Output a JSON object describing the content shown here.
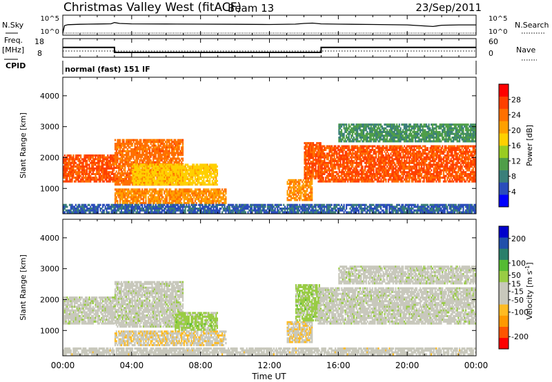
{
  "header": {
    "station": "Christmas Valley West (fitACF)",
    "beam": "Beam 13",
    "date": "23/Sep/2011"
  },
  "left_labels": {
    "nsky": "N.Sky",
    "nsky_ticks": [
      "10^5",
      "10^0"
    ],
    "freq": "Freq.",
    "freq_unit": "[MHz]",
    "freq_ticks": [
      "18",
      "8"
    ],
    "cpid": "CPID"
  },
  "right_labels": {
    "nsearch": "N.Search",
    "nsearch_ticks": [
      "10^5",
      "10^0"
    ],
    "nave": "Nave",
    "nave_ticks": [
      "60",
      "0"
    ]
  },
  "mode_text": "normal (fast) 151 IF",
  "colors": {
    "power_scale": [
      "#0000ff",
      "#2a4dbb",
      "#3a7f7a",
      "#4f9e49",
      "#99cc22",
      "#ffd000",
      "#ffa000",
      "#ff7000",
      "#ff4000",
      "#ff0000"
    ],
    "velocity_scale": [
      "#ff0000",
      "#ff5500",
      "#ff9900",
      "#ffbb22",
      "#c8c8bc",
      "#c8c8bc",
      "#99cc44",
      "#55bb33",
      "#2a7f6a",
      "#2050aa",
      "#0000cc"
    ]
  },
  "chart_data": [
    {
      "type": "line",
      "name": "nsky-panel",
      "x_range_hours": [
        0,
        24
      ],
      "y_scale": "log",
      "y_ticks": [
        "10^0",
        "10^5"
      ],
      "right_y_ticks": [
        "10^0",
        "10^5"
      ],
      "series": [
        {
          "name": "N.Sky",
          "x": [
            0,
            0.1,
            0.3,
            1,
            2,
            2.8,
            3,
            3.3,
            4,
            6,
            8,
            10,
            12,
            13.5,
            14,
            14.5,
            15,
            16,
            18,
            20,
            21.5,
            22,
            23,
            24
          ],
          "y": [
            1,
            300,
            600,
            800,
            1000,
            1200,
            3000,
            1500,
            1100,
            1000,
            900,
            800,
            700,
            900,
            1500,
            2000,
            1100,
            900,
            700,
            500,
            150,
            400,
            500,
            500
          ]
        },
        {
          "name": "N.Search",
          "x": [
            0,
            24
          ],
          "y": [
            1,
            1
          ]
        }
      ]
    },
    {
      "type": "line",
      "name": "freq-panel",
      "x_range_hours": [
        0,
        24
      ],
      "y_ticks_left": [
        "8",
        "18"
      ],
      "y_ticks_right": [
        "0",
        "60"
      ],
      "series": [
        {
          "name": "Freq.",
          "x": [
            0,
            3,
            3,
            15,
            15,
            24
          ],
          "y": [
            15,
            15,
            10.5,
            10.5,
            15,
            15
          ]
        },
        {
          "name": "Nave",
          "x": [
            0,
            24
          ],
          "y": [
            15,
            15
          ]
        }
      ]
    },
    {
      "type": "heatmap",
      "name": "power-panel",
      "title": "",
      "xlabel": "",
      "ylabel": "Slant Range [km]",
      "x_range_hours": [
        0,
        24
      ],
      "y_range_km": [
        180,
        4600
      ],
      "y_ticks": [
        1000,
        2000,
        3000,
        4000
      ],
      "colorbar_label": "Power [dB]",
      "colorbar_ticks": [
        4,
        8,
        12,
        16,
        20,
        24,
        28
      ],
      "colorbar_range": [
        0,
        32
      ],
      "regions": [
        {
          "t0": 0,
          "t1": 3,
          "r0": 1200,
          "r1": 2100,
          "value": 26
        },
        {
          "t0": 3,
          "t1": 7,
          "r0": 1100,
          "r1": 2600,
          "value": 24
        },
        {
          "t0": 3,
          "t1": 9.5,
          "r0": 500,
          "r1": 1000,
          "value": 22
        },
        {
          "t0": 4,
          "t1": 9,
          "r0": 1100,
          "r1": 1800,
          "value": 18
        },
        {
          "t0": 13,
          "t1": 14.5,
          "r0": 600,
          "r1": 1300,
          "value": 22
        },
        {
          "t0": 14,
          "t1": 15,
          "r0": 1300,
          "r1": 2500,
          "value": 26
        },
        {
          "t0": 14.8,
          "t1": 24,
          "r0": 1200,
          "r1": 2400,
          "value": 26
        },
        {
          "t0": 16,
          "t1": 24,
          "r0": 2500,
          "r1": 3100,
          "value": 10
        },
        {
          "t0": 0,
          "t1": 24,
          "r0": 200,
          "r1": 500,
          "value": 6
        }
      ]
    },
    {
      "type": "heatmap",
      "name": "velocity-panel",
      "title": "",
      "xlabel": "Time UT",
      "ylabel": "Slant Range [km]",
      "x_range_hours": [
        0,
        24
      ],
      "x_ticks": [
        "00:00",
        "04:00",
        "08:00",
        "12:00",
        "16:00",
        "20:00",
        "00:00"
      ],
      "y_range_km": [
        180,
        4600
      ],
      "y_ticks": [
        1000,
        2000,
        3000,
        4000
      ],
      "colorbar_label": "Velocity [m s^-1]",
      "colorbar_ticks": [
        -200,
        -100,
        -50,
        -15,
        15,
        50,
        100,
        200
      ],
      "colorbar_range": [
        -250,
        250
      ],
      "regions": [
        {
          "t0": 0,
          "t1": 3,
          "r0": 1200,
          "r1": 2100,
          "value": 0
        },
        {
          "t0": 3,
          "t1": 7,
          "r0": 1100,
          "r1": 2600,
          "value": 0
        },
        {
          "t0": 3,
          "t1": 9.5,
          "r0": 500,
          "r1": 1000,
          "value": -60
        },
        {
          "t0": 6.5,
          "t1": 9,
          "r0": 1000,
          "r1": 1600,
          "value": 40
        },
        {
          "t0": 13,
          "t1": 14.5,
          "r0": 600,
          "r1": 1300,
          "value": -60
        },
        {
          "t0": 13.5,
          "t1": 15,
          "r0": 1300,
          "r1": 2500,
          "value": 40
        },
        {
          "t0": 14.8,
          "t1": 24,
          "r0": 1200,
          "r1": 2400,
          "value": 0
        },
        {
          "t0": 16,
          "t1": 24,
          "r0": 2500,
          "r1": 3100,
          "value": 0
        },
        {
          "t0": 0,
          "t1": 24,
          "r0": 200,
          "r1": 450,
          "value": -40
        }
      ]
    }
  ]
}
